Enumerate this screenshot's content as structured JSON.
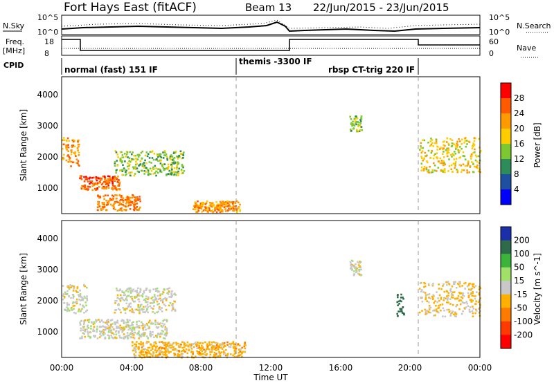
{
  "header": {
    "station_title": "Fort Hays East (fitACF)",
    "beam_label": "Beam 13",
    "date_range": "22/Jun/2015 - 23/Jun/2015"
  },
  "summary_panels": {
    "nsky_label": "N.Sky",
    "nsky_ticks": [
      "10^5",
      "10^0"
    ],
    "nsearch_label": "N.Search",
    "nsearch_ticks": [
      "10^5",
      "10^0"
    ],
    "freq_label": "Freq.",
    "freq_unit": "[MHz]",
    "freq_ticks": [
      "18",
      "8"
    ],
    "nave_label": "Nave",
    "nave_ticks": [
      "60",
      "0"
    ],
    "cpid_label": "CPID",
    "modes": [
      {
        "label": "normal (fast) 151 IF"
      },
      {
        "label": "themis -3300 IF"
      },
      {
        "label": "rbsp CT-trig 220 IF"
      }
    ]
  },
  "power_panel": {
    "ylabel": "Slant Range [km]",
    "yticks": [
      "4000",
      "3000",
      "2000",
      "1000"
    ],
    "colorbar_label": "Power [dB]",
    "colorbar_ticks": [
      "28",
      "24",
      "20",
      "16",
      "12",
      "8",
      "4"
    ],
    "colorbar_colors": [
      "#ff0000",
      "#ff5a00",
      "#ff9a00",
      "#ffcc00",
      "#7dc832",
      "#2d8c5a",
      "#1e4fa0",
      "#0000ff"
    ]
  },
  "velocity_panel": {
    "ylabel": "Slant Range [km]",
    "yticks": [
      "4000",
      "3000",
      "2000",
      "1000"
    ],
    "colorbar_label": "Velocity [m s^-1]",
    "colorbar_ticks": [
      "200",
      "100",
      "50",
      "15",
      "-15",
      "-50",
      "-100",
      "-200"
    ],
    "colorbar_colors": [
      "#1a2fa8",
      "#2e6b4a",
      "#3cb43c",
      "#a0e068",
      "#c8c8c8",
      "#ffb000",
      "#ff7a00",
      "#ff3a00",
      "#ff0000"
    ]
  },
  "xaxis": {
    "label": "Time UT",
    "ticks": [
      "00:00",
      "04:00",
      "08:00",
      "12:00",
      "16:00",
      "20:00",
      "00:00"
    ]
  },
  "chart_data": [
    {
      "type": "heatmap",
      "title": "",
      "ylabel": "Slant Range [km]",
      "xlabel": "",
      "x_range_hours": [
        0,
        24
      ],
      "ylim": [
        180,
        4500
      ],
      "colorbar": "Power [dB]",
      "blobs": [
        {
          "t0": 0.0,
          "t1": 1.0,
          "r0": 1700,
          "r1": 2600,
          "power": 22
        },
        {
          "t0": 1.0,
          "t1": 3.3,
          "r0": 950,
          "r1": 1400,
          "power": 26
        },
        {
          "t0": 2.0,
          "t1": 4.5,
          "r0": 300,
          "r1": 800,
          "power": 24
        },
        {
          "t0": 3.0,
          "t1": 7.0,
          "r0": 1400,
          "r1": 2200,
          "power": 14
        },
        {
          "t0": 7.5,
          "t1": 10.2,
          "r0": 250,
          "r1": 600,
          "power": 22
        },
        {
          "t0": 16.5,
          "t1": 17.2,
          "r0": 2800,
          "r1": 3300,
          "power": 14
        },
        {
          "t0": 20.5,
          "t1": 24.0,
          "r0": 1500,
          "r1": 2600,
          "power": 18
        }
      ]
    },
    {
      "type": "heatmap",
      "title": "",
      "ylabel": "Slant Range [km]",
      "xlabel": "Time UT",
      "x_range_hours": [
        0,
        24
      ],
      "ylim": [
        180,
        4500
      ],
      "colorbar": "Velocity [m s^-1]",
      "blobs": [
        {
          "t0": 0.0,
          "t1": 1.5,
          "r0": 1600,
          "r1": 2500,
          "velocity": 0
        },
        {
          "t0": 1.0,
          "t1": 6.0,
          "r0": 800,
          "r1": 1400,
          "velocity": 0
        },
        {
          "t0": 3.0,
          "t1": 6.5,
          "r0": 1600,
          "r1": 2400,
          "velocity": 0
        },
        {
          "t0": 4.0,
          "t1": 10.5,
          "r0": 200,
          "r1": 700,
          "velocity": -30
        },
        {
          "t0": 16.5,
          "t1": 17.2,
          "r0": 2800,
          "r1": 3300,
          "velocity": 0
        },
        {
          "t0": 19.2,
          "t1": 19.6,
          "r0": 1500,
          "r1": 2200,
          "velocity": 150
        },
        {
          "t0": 20.5,
          "t1": 24.0,
          "r0": 1500,
          "r1": 2600,
          "velocity": -20
        }
      ]
    }
  ]
}
